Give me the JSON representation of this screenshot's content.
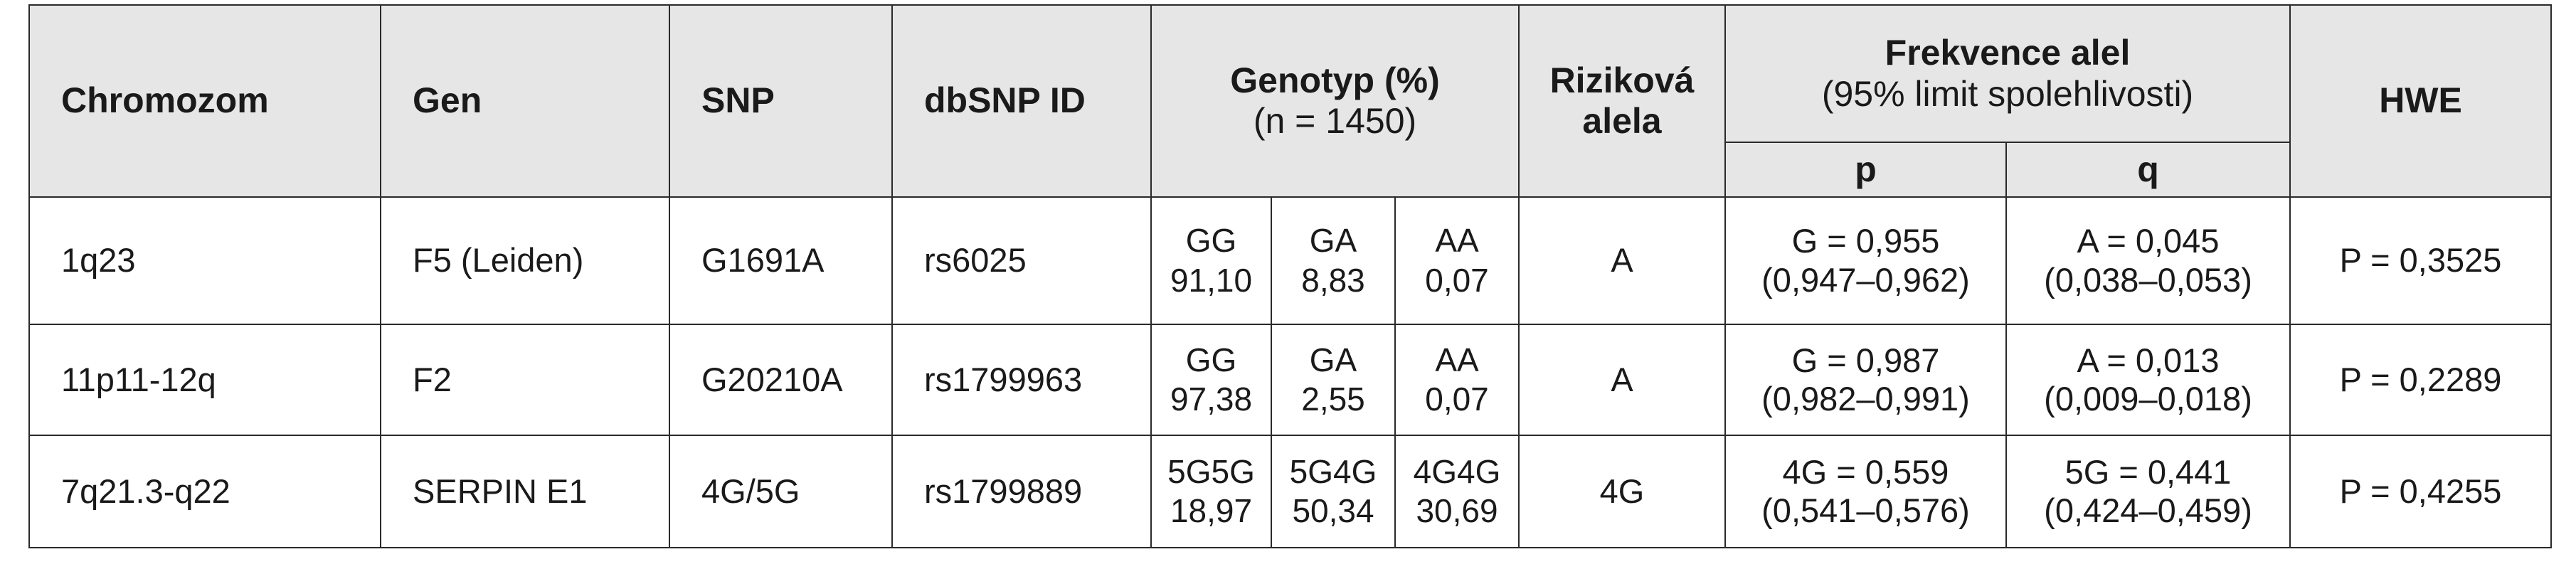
{
  "table": {
    "header": {
      "chromozom": "Chromozom",
      "gen": "Gen",
      "snp": "SNP",
      "dbsnp": "dbSNP ID",
      "genotyp": [
        "Genotyp (%)",
        "(n = 1450)"
      ],
      "rizikova": [
        "Riziková",
        "alela"
      ],
      "frekvence": [
        "Frekvence alel",
        "(95% limit spolehlivosti)"
      ],
      "p": "p",
      "q": "q",
      "hwe": "HWE"
    },
    "rows": [
      {
        "chromozom": "1q23",
        "gen": "F5 (Leiden)",
        "snp": "G1691A",
        "dbsnp": "rs6025",
        "genotypes": [
          {
            "g": "GG",
            "v": "91,10"
          },
          {
            "g": "GA",
            "v": "8,83"
          },
          {
            "g": "AA",
            "v": "0,07"
          }
        ],
        "rizikova": "A",
        "p": [
          "G = 0,955",
          "(0,947–0,962)"
        ],
        "q": [
          "A = 0,045",
          "(0,038–0,053)"
        ],
        "hwe": "P = 0,3525"
      },
      {
        "chromozom": "11p11-12q",
        "gen": "F2",
        "snp": "G20210A",
        "dbsnp": "rs1799963",
        "genotypes": [
          {
            "g": "GG",
            "v": "97,38"
          },
          {
            "g": "GA",
            "v": "2,55"
          },
          {
            "g": "AA",
            "v": "0,07"
          }
        ],
        "rizikova": "A",
        "p": [
          "G = 0,987",
          "(0,982–0,991)"
        ],
        "q": [
          "A = 0,013",
          "(0,009–0,018)"
        ],
        "hwe": "P = 0,2289"
      },
      {
        "chromozom": "7q21.3-q22",
        "gen": "SERPIN E1",
        "snp": "4G/5G",
        "dbsnp": "rs1799889",
        "genotypes": [
          {
            "g": "5G5G",
            "v": "18,97"
          },
          {
            "g": "5G4G",
            "v": "50,34"
          },
          {
            "g": "4G4G",
            "v": "30,69"
          }
        ],
        "rizikova": "4G",
        "p": [
          "4G = 0,559",
          "(0,541–0,576)"
        ],
        "q": [
          "5G = 0,441",
          "(0,424–0,459)"
        ],
        "hwe": "P = 0,4255"
      }
    ]
  }
}
